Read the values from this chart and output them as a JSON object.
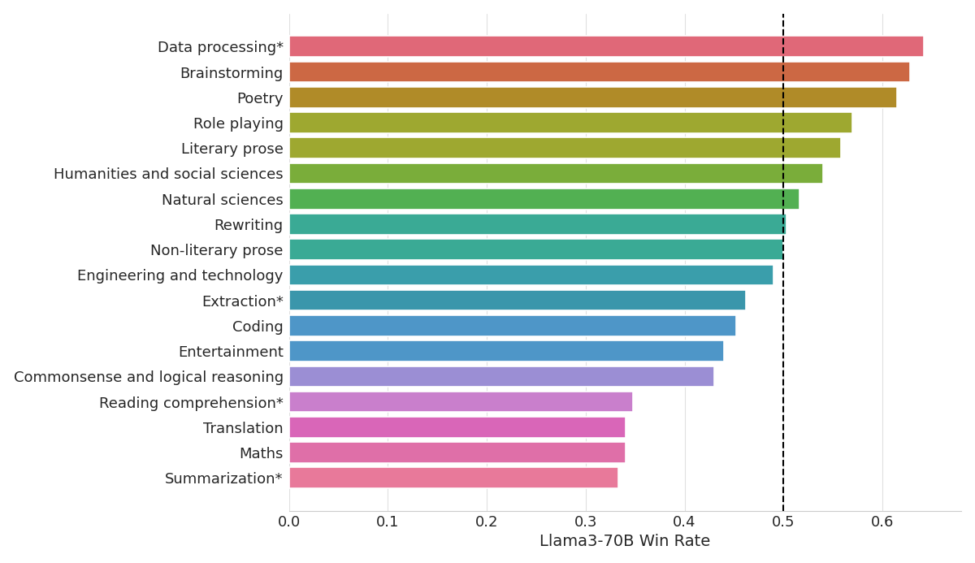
{
  "categories": [
    "Summarization*",
    "Maths",
    "Translation",
    "Reading comprehension*",
    "Commonsense and logical reasoning",
    "Entertainment",
    "Coding",
    "Extraction*",
    "Engineering and technology",
    "Non-literary prose",
    "Rewriting",
    "Natural sciences",
    "Humanities and social sciences",
    "Literary prose",
    "Role playing",
    "Poetry",
    "Brainstorming",
    "Data processing*"
  ],
  "values": [
    0.333,
    0.34,
    0.34,
    0.348,
    0.43,
    0.44,
    0.452,
    0.462,
    0.49,
    0.5,
    0.503,
    0.516,
    0.54,
    0.558,
    0.57,
    0.615,
    0.628,
    0.642
  ],
  "colors": [
    "#E8799A",
    "#DF6FA8",
    "#D966B8",
    "#C97FCC",
    "#9B8ED4",
    "#4E96C8",
    "#4E96C8",
    "#3A96AB",
    "#3A9EAB",
    "#3AAA95",
    "#3AAA95",
    "#52B052",
    "#7AAD3A",
    "#9EA830",
    "#9EA830",
    "#B08B28",
    "#CC6844",
    "#E06878"
  ],
  "xlabel": "Llama3-70B Win Rate",
  "vline": 0.5,
  "xlim": [
    0.0,
    0.68
  ],
  "xticks": [
    0.0,
    0.1,
    0.2,
    0.3,
    0.4,
    0.5,
    0.6
  ],
  "background_color": "#ffffff",
  "grid_color": "#e0e0e0"
}
